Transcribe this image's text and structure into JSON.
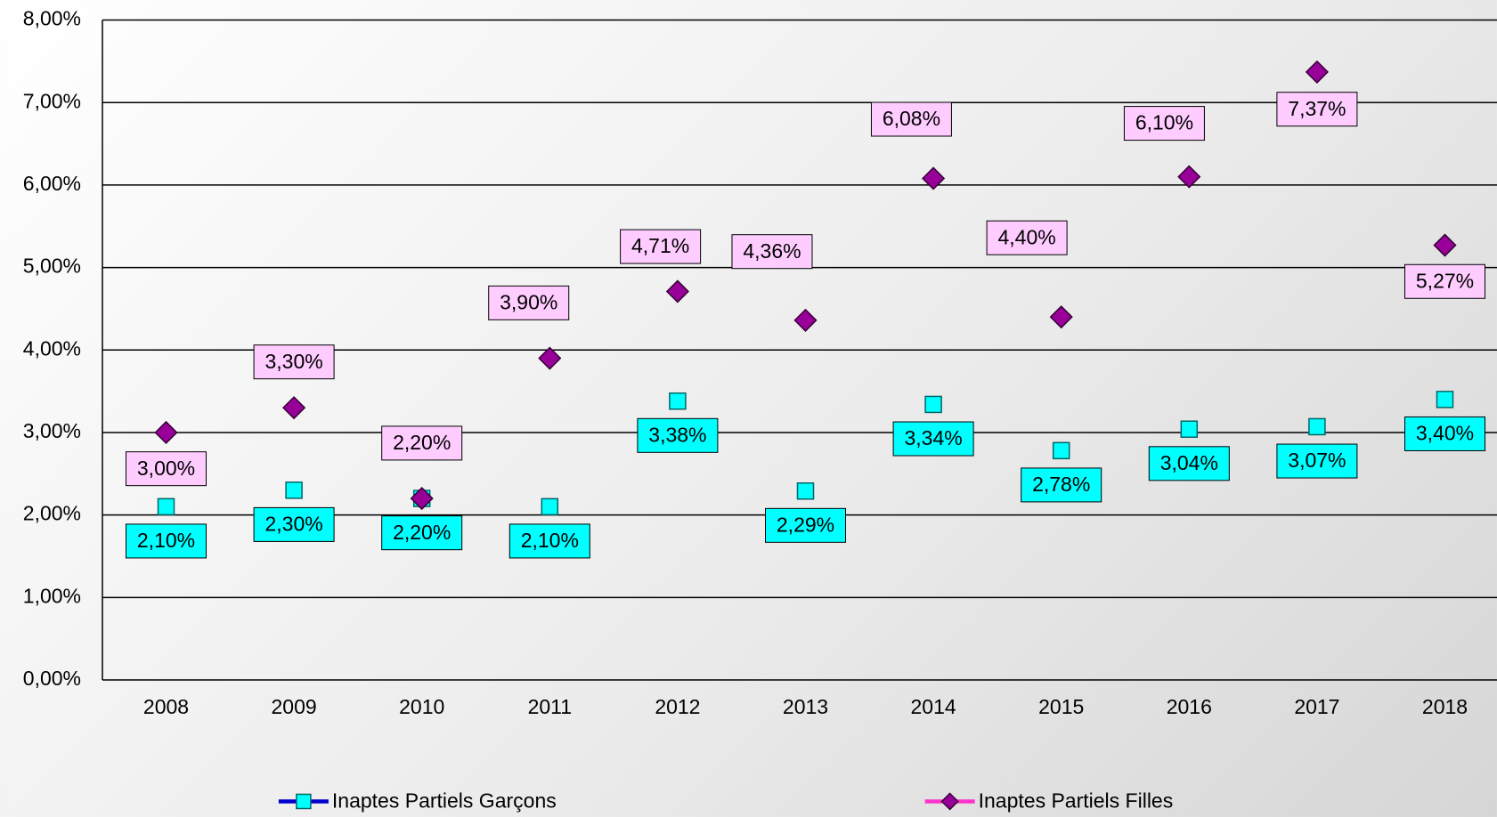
{
  "chart_data": {
    "type": "line",
    "categories": [
      "2008",
      "2009",
      "2010",
      "2011",
      "2012",
      "2013",
      "2014",
      "2015",
      "2016",
      "2017",
      "2018"
    ],
    "series": [
      {
        "name": "Inaptes Partiels Garçons",
        "color": "#0000cc",
        "marker_color": "#00ffff",
        "marker": "square",
        "values": [
          2.1,
          2.3,
          2.2,
          2.1,
          3.38,
          2.29,
          3.34,
          2.78,
          3.04,
          3.07,
          3.4
        ],
        "value_labels": [
          "2,10%",
          "2,30%",
          "2,20%",
          "2,10%",
          "3,38%",
          "2,29%",
          "3,34%",
          "2,78%",
          "3,04%",
          "3,07%",
          "3,40%"
        ],
        "label_fill": "#00ffff"
      },
      {
        "name": "Inaptes Partiels Filles",
        "color": "#ff33cc",
        "marker_color": "#990099",
        "marker": "diamond",
        "values": [
          3.0,
          3.3,
          2.2,
          3.9,
          4.71,
          4.36,
          6.08,
          4.4,
          6.1,
          7.37,
          5.27
        ],
        "value_labels": [
          "3,00%",
          "3,30%",
          "2,20%",
          "3,90%",
          "4,71%",
          "4,36%",
          "6,08%",
          "4,40%",
          "6,10%",
          "7,37%",
          "5,27%"
        ],
        "label_fill": "#ffccff"
      }
    ],
    "ylim": [
      0,
      8
    ],
    "yticks": [
      {
        "value": 0,
        "label": "0,00%"
      },
      {
        "value": 1,
        "label": "1,00%"
      },
      {
        "value": 2,
        "label": "2,00%"
      },
      {
        "value": 3,
        "label": "3,00%"
      },
      {
        "value": 4,
        "label": "4,00%"
      },
      {
        "value": 5,
        "label": "5,00%"
      },
      {
        "value": 6,
        "label": "6,00%"
      },
      {
        "value": 7,
        "label": "7,00%"
      },
      {
        "value": 8,
        "label": "8,00%"
      }
    ],
    "grid": true,
    "legend": "bottom"
  }
}
